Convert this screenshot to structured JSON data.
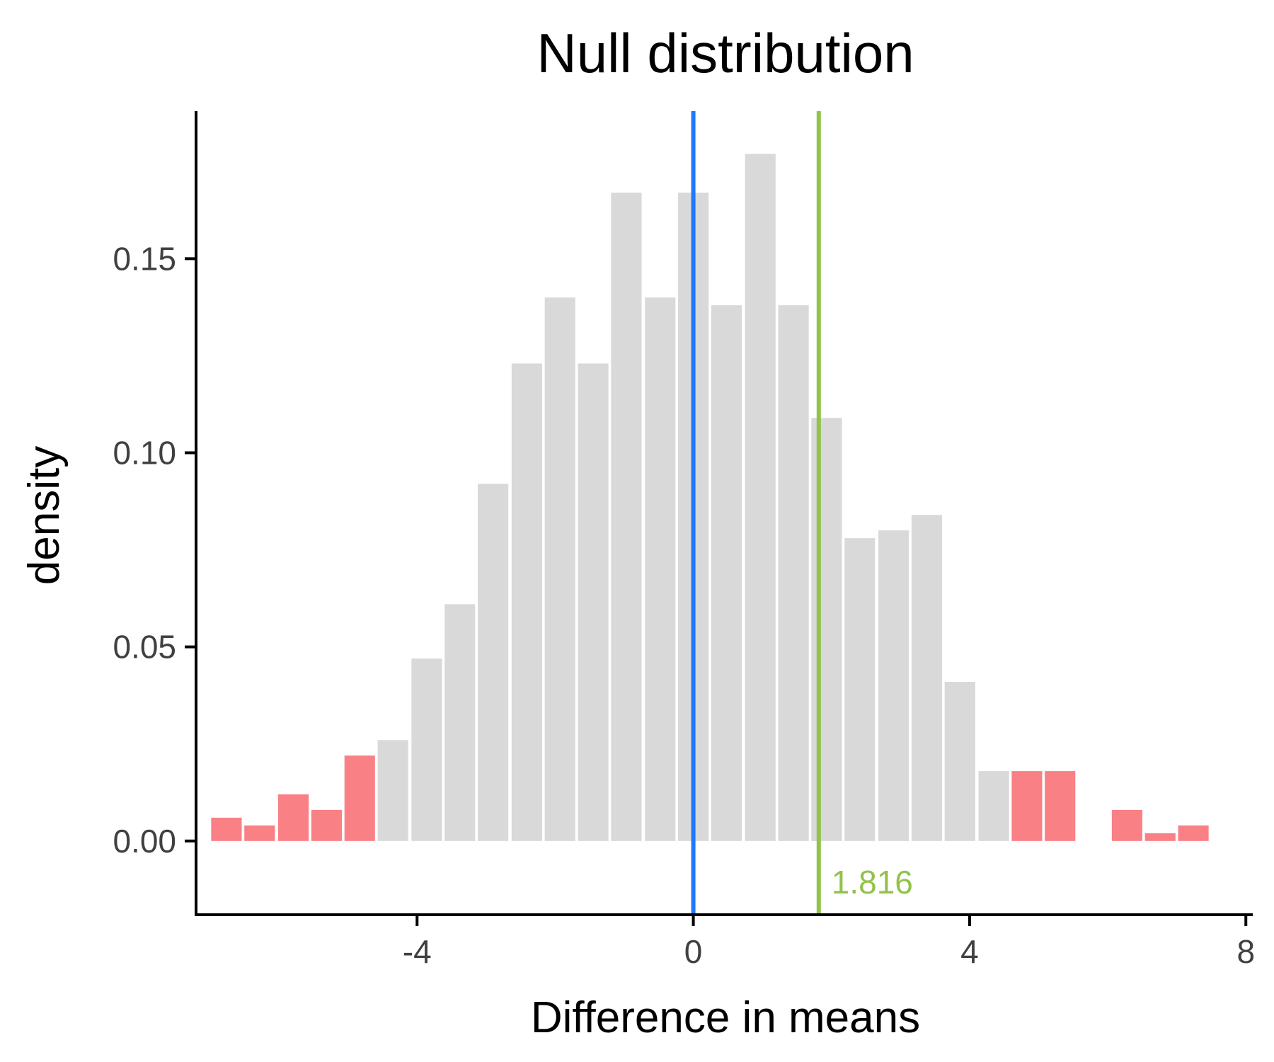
{
  "chart_data": {
    "type": "bar",
    "title": "Null distribution",
    "xlabel": "Difference in means",
    "ylabel": "density",
    "xlim": [
      -7.2,
      8.1
    ],
    "ylim": [
      -0.019,
      0.188
    ],
    "xticks": [
      -4,
      0,
      4,
      8
    ],
    "xtick_labels": [
      "-4",
      "0",
      "4",
      "8"
    ],
    "yticks": [
      0.0,
      0.05,
      0.1,
      0.15
    ],
    "ytick_labels": [
      "0.00",
      "0.05",
      "0.10",
      "0.15"
    ],
    "bin_width": 0.483,
    "bins": [
      {
        "x": -6.76,
        "density": 0.006,
        "tail": true
      },
      {
        "x": -6.28,
        "density": 0.004,
        "tail": true
      },
      {
        "x": -5.79,
        "density": 0.012,
        "tail": true
      },
      {
        "x": -5.31,
        "density": 0.008,
        "tail": true
      },
      {
        "x": -4.83,
        "density": 0.022,
        "tail": true
      },
      {
        "x": -4.35,
        "density": 0.026,
        "tail": false
      },
      {
        "x": -3.86,
        "density": 0.047,
        "tail": false
      },
      {
        "x": -3.38,
        "density": 0.061,
        "tail": false
      },
      {
        "x": -2.9,
        "density": 0.092,
        "tail": false
      },
      {
        "x": -2.41,
        "density": 0.123,
        "tail": false
      },
      {
        "x": -1.93,
        "density": 0.14,
        "tail": false
      },
      {
        "x": -1.45,
        "density": 0.123,
        "tail": false
      },
      {
        "x": -0.97,
        "density": 0.167,
        "tail": false
      },
      {
        "x": -0.48,
        "density": 0.14,
        "tail": false
      },
      {
        "x": 0.0,
        "density": 0.167,
        "tail": false
      },
      {
        "x": 0.48,
        "density": 0.138,
        "tail": false
      },
      {
        "x": 0.97,
        "density": 0.177,
        "tail": false
      },
      {
        "x": 1.45,
        "density": 0.138,
        "tail": false
      },
      {
        "x": 1.93,
        "density": 0.109,
        "tail": false
      },
      {
        "x": 2.41,
        "density": 0.078,
        "tail": false
      },
      {
        "x": 2.9,
        "density": 0.08,
        "tail": false
      },
      {
        "x": 3.38,
        "density": 0.084,
        "tail": false
      },
      {
        "x": 3.86,
        "density": 0.041,
        "tail": false
      },
      {
        "x": 4.35,
        "density": 0.018,
        "tail": false
      },
      {
        "x": 4.83,
        "density": 0.018,
        "tail": true
      },
      {
        "x": 5.31,
        "density": 0.018,
        "tail": true
      },
      {
        "x": 6.28,
        "density": 0.008,
        "tail": true
      },
      {
        "x": 6.76,
        "density": 0.002,
        "tail": true
      },
      {
        "x": 7.24,
        "density": 0.004,
        "tail": true
      }
    ],
    "reference_lines": [
      {
        "x": 0.0,
        "color": "#1f78ff"
      },
      {
        "x": 1.816,
        "color": "#92c24a",
        "label": "1.816"
      }
    ],
    "colors": {
      "bar_fill": "#d9d9d9",
      "tail_fill": "#f98085",
      "null_line": "#1f78ff",
      "observed_line": "#92c24a"
    },
    "grid": false
  }
}
